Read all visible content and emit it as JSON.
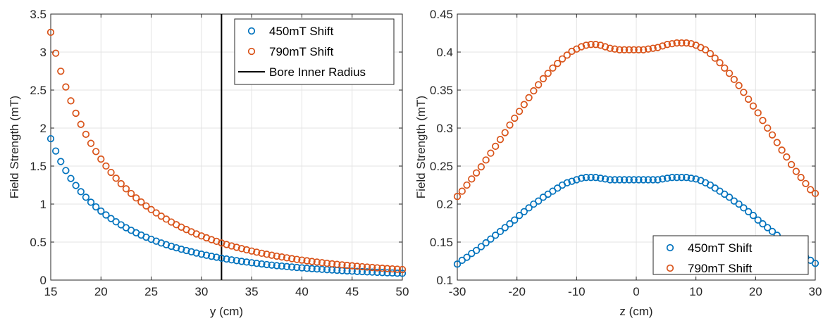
{
  "chart_data": [
    {
      "type": "scatter",
      "xlabel": "y (cm)",
      "ylabel": "Field Strength (mT)",
      "xlim": [
        15,
        50
      ],
      "ylim": [
        0,
        3.5
      ],
      "xticks": [
        15,
        20,
        25,
        30,
        35,
        40,
        45,
        50
      ],
      "xtick_labels": [
        "15",
        "20",
        "25",
        "30",
        "35",
        "40",
        "45",
        "50"
      ],
      "yticks": [
        0,
        0.5,
        1,
        1.5,
        2,
        2.5,
        3,
        3.5
      ],
      "ytick_labels": [
        "0",
        "0.5",
        "1",
        "1.5",
        "2",
        "2.5",
        "3",
        "3.5"
      ],
      "grid": true,
      "legend": "top-right",
      "x": [
        15.0,
        15.5,
        16.0,
        16.5,
        17.0,
        17.5,
        18.0,
        18.5,
        19.0,
        19.5,
        20.0,
        20.5,
        21.0,
        21.5,
        22.0,
        22.5,
        23.0,
        23.5,
        24.0,
        24.5,
        25.0,
        25.5,
        26.0,
        26.5,
        27.0,
        27.5,
        28.0,
        28.5,
        29.0,
        29.5,
        30.0,
        30.5,
        31.0,
        31.5,
        32.0,
        32.5,
        33.0,
        33.5,
        34.0,
        34.5,
        35.0,
        35.5,
        36.0,
        36.5,
        37.0,
        37.5,
        38.0,
        38.5,
        39.0,
        39.5,
        40.0,
        40.5,
        41.0,
        41.5,
        42.0,
        42.5,
        43.0,
        43.5,
        44.0,
        44.5,
        45.0,
        45.5,
        46.0,
        46.5,
        47.0,
        47.5,
        48.0,
        48.5,
        49.0,
        49.5,
        50.0
      ],
      "series": [
        {
          "name": "450mT Shift",
          "color": "#0072BD",
          "values": [
            1.86,
            1.698,
            1.56,
            1.441,
            1.337,
            1.245,
            1.163,
            1.09,
            1.024,
            0.963,
            0.908,
            0.857,
            0.81,
            0.767,
            0.727,
            0.689,
            0.655,
            0.622,
            0.592,
            0.564,
            0.537,
            0.512,
            0.488,
            0.466,
            0.445,
            0.425,
            0.406,
            0.389,
            0.372,
            0.356,
            0.341,
            0.327,
            0.313,
            0.301,
            0.288,
            0.277,
            0.266,
            0.256,
            0.246,
            0.237,
            0.228,
            0.22,
            0.212,
            0.204,
            0.197,
            0.19,
            0.184,
            0.178,
            0.172,
            0.166,
            0.161,
            0.155,
            0.15,
            0.146,
            0.141,
            0.137,
            0.133,
            0.129,
            0.125,
            0.121,
            0.118,
            0.114,
            0.111,
            0.108,
            0.105,
            0.102,
            0.099,
            0.096,
            0.094,
            0.091,
            0.089
          ]
        },
        {
          "name": "790mT Shift",
          "color": "#D95319",
          "values": [
            3.26,
            2.985,
            2.748,
            2.541,
            2.358,
            2.195,
            2.049,
            1.918,
            1.799,
            1.691,
            1.592,
            1.501,
            1.417,
            1.34,
            1.268,
            1.201,
            1.139,
            1.081,
            1.027,
            0.976,
            0.928,
            0.884,
            0.841,
            0.802,
            0.764,
            0.729,
            0.696,
            0.665,
            0.635,
            0.607,
            0.581,
            0.556,
            0.532,
            0.51,
            0.488,
            0.468,
            0.449,
            0.431,
            0.414,
            0.398,
            0.382,
            0.367,
            0.353,
            0.34,
            0.327,
            0.315,
            0.304,
            0.293,
            0.282,
            0.272,
            0.263,
            0.254,
            0.245,
            0.237,
            0.229,
            0.221,
            0.214,
            0.207,
            0.2,
            0.194,
            0.188,
            0.182,
            0.176,
            0.171,
            0.166,
            0.161,
            0.156,
            0.151,
            0.147,
            0.143,
            0.139
          ]
        }
      ],
      "reference_line": {
        "name": "Bore Inner Radius",
        "x": 32,
        "color": "#000000"
      }
    },
    {
      "type": "scatter",
      "xlabel": "z (cm)",
      "ylabel": "Field Strength (mT)",
      "xlim": [
        -30,
        30
      ],
      "ylim": [
        0.1,
        0.45
      ],
      "xticks": [
        -30,
        -20,
        -10,
        0,
        10,
        20,
        30
      ],
      "xtick_labels": [
        "-30",
        "-20",
        "-10",
        "0",
        "10",
        "20",
        "30"
      ],
      "yticks": [
        0.1,
        0.15,
        0.2,
        0.25,
        0.3,
        0.35,
        0.4,
        0.45
      ],
      "ytick_labels": [
        "0.1",
        "0.15",
        "0.2",
        "0.25",
        "0.3",
        "0.35",
        "0.4",
        "0.45"
      ],
      "grid": true,
      "legend": "bottom-right",
      "x": [
        -30.0,
        -29.2,
        -28.4,
        -27.6,
        -26.8,
        -26.0,
        -25.2,
        -24.4,
        -23.6,
        -22.8,
        -22.0,
        -21.2,
        -20.4,
        -19.6,
        -18.8,
        -18.0,
        -17.2,
        -16.4,
        -15.6,
        -14.8,
        -14.0,
        -13.2,
        -12.4,
        -11.6,
        -10.8,
        -10.0,
        -9.2,
        -8.4,
        -7.6,
        -6.8,
        -6.0,
        -5.2,
        -4.4,
        -3.6,
        -2.8,
        -2.0,
        -1.2,
        -0.4,
        0.4,
        1.2,
        2.0,
        2.8,
        3.6,
        4.4,
        5.2,
        6.0,
        6.8,
        7.6,
        8.4,
        9.2,
        10.0,
        10.8,
        11.6,
        12.4,
        13.2,
        14.0,
        14.8,
        15.6,
        16.4,
        17.2,
        18.0,
        18.8,
        19.6,
        20.4,
        21.2,
        22.0,
        22.8,
        23.6,
        24.4,
        25.2,
        26.0,
        26.8,
        27.6,
        28.4,
        29.2,
        30.0
      ],
      "series": [
        {
          "name": "450mT Shift",
          "color": "#0072BD",
          "values": [
            0.121,
            0.126,
            0.13,
            0.135,
            0.139,
            0.144,
            0.149,
            0.154,
            0.159,
            0.164,
            0.169,
            0.174,
            0.179,
            0.185,
            0.19,
            0.195,
            0.2,
            0.204,
            0.209,
            0.213,
            0.217,
            0.221,
            0.225,
            0.228,
            0.23,
            0.232,
            0.234,
            0.235,
            0.235,
            0.235,
            0.234,
            0.233,
            0.232,
            0.232,
            0.232,
            0.232,
            0.232,
            0.232,
            0.232,
            0.232,
            0.232,
            0.232,
            0.232,
            0.233,
            0.234,
            0.235,
            0.235,
            0.235,
            0.235,
            0.234,
            0.233,
            0.231,
            0.228,
            0.225,
            0.221,
            0.217,
            0.213,
            0.209,
            0.204,
            0.2,
            0.195,
            0.19,
            0.185,
            0.179,
            0.174,
            0.169,
            0.164,
            0.159,
            0.154,
            0.149,
            0.144,
            0.139,
            0.135,
            0.13,
            0.126,
            0.122
          ]
        },
        {
          "name": "790mT Shift",
          "color": "#D95319",
          "values": [
            0.21,
            0.217,
            0.225,
            0.233,
            0.241,
            0.249,
            0.258,
            0.267,
            0.276,
            0.285,
            0.294,
            0.304,
            0.313,
            0.322,
            0.331,
            0.34,
            0.349,
            0.357,
            0.365,
            0.372,
            0.379,
            0.385,
            0.391,
            0.396,
            0.401,
            0.404,
            0.407,
            0.409,
            0.41,
            0.41,
            0.409,
            0.407,
            0.405,
            0.404,
            0.403,
            0.403,
            0.403,
            0.403,
            0.403,
            0.403,
            0.404,
            0.405,
            0.406,
            0.408,
            0.41,
            0.411,
            0.412,
            0.412,
            0.412,
            0.411,
            0.409,
            0.406,
            0.403,
            0.398,
            0.392,
            0.386,
            0.379,
            0.372,
            0.364,
            0.356,
            0.347,
            0.338,
            0.329,
            0.32,
            0.31,
            0.3,
            0.291,
            0.281,
            0.271,
            0.262,
            0.252,
            0.243,
            0.235,
            0.227,
            0.219,
            0.214
          ]
        }
      ]
    }
  ]
}
